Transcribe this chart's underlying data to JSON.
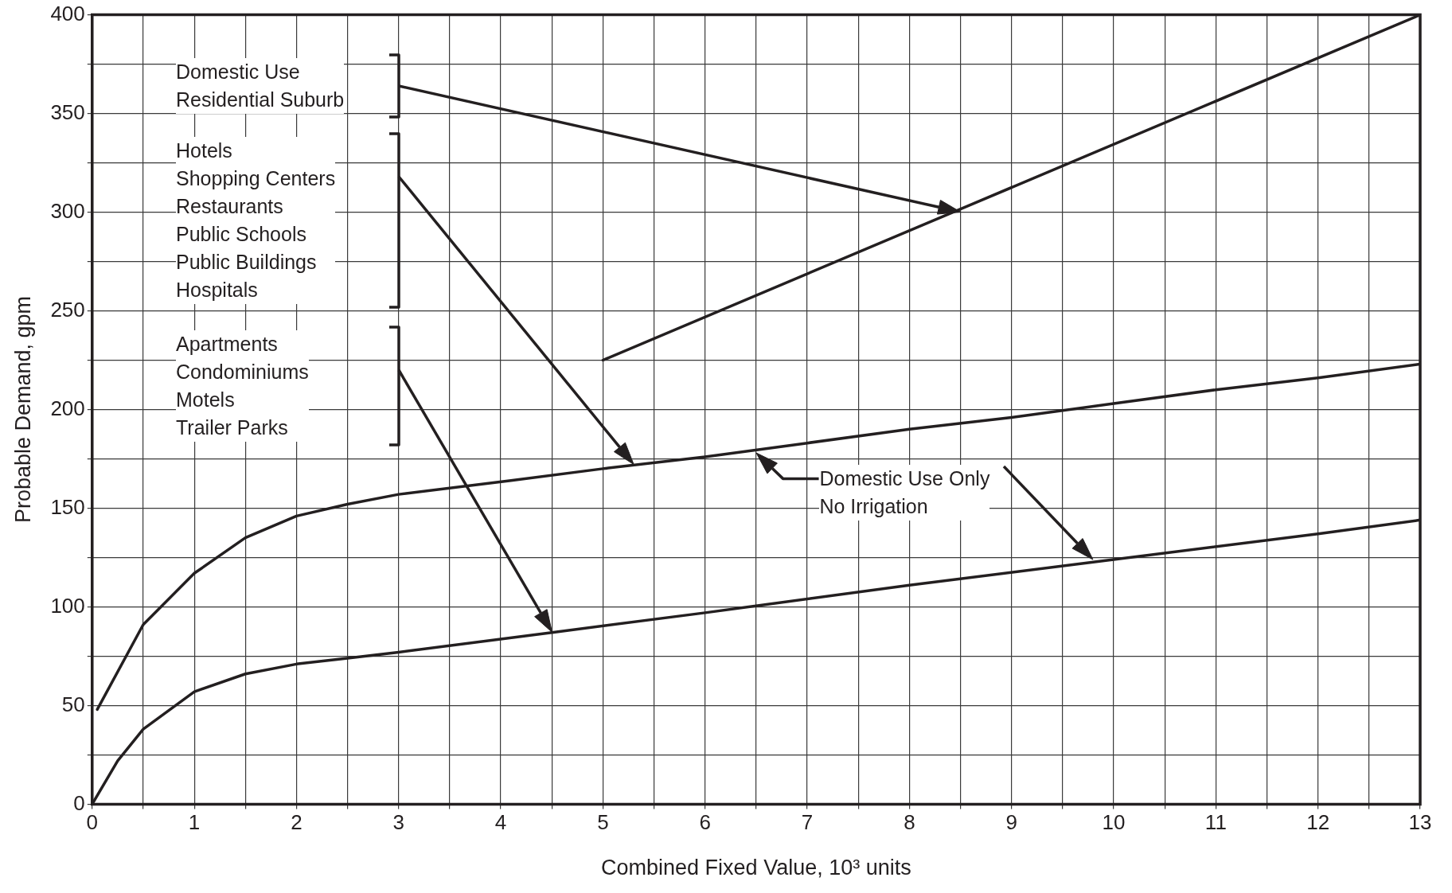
{
  "chart_data": {
    "type": "line",
    "xlabel": "Combined Fixed Value, 10³ units",
    "ylabel": "Probable Demand, gpm",
    "series": [
      {
        "color": "#231f20",
        "x": [
          5,
          13
        ],
        "values": [
          225,
          400
        ]
      },
      {
        "color": "#231f20",
        "x": [
          0.05,
          0.5,
          1,
          1.5,
          2,
          2.5,
          3,
          4.1,
          5,
          6,
          7,
          8,
          9,
          10,
          11,
          12,
          13
        ],
        "values": [
          48,
          91,
          117,
          135,
          146,
          152,
          157,
          164,
          170,
          176,
          183,
          190,
          196,
          203,
          210,
          216,
          223
        ]
      },
      {
        "color": "#231f20",
        "x": [
          0,
          0.25,
          0.5,
          1,
          1.5,
          2,
          2.5,
          3,
          4.5,
          6,
          8,
          10,
          12,
          13
        ],
        "values": [
          0,
          22,
          38,
          57,
          66,
          71,
          74,
          77,
          87,
          97,
          111,
          124,
          137,
          144
        ]
      }
    ],
    "xlim": [
      0,
      13
    ],
    "ylim": [
      0,
      400
    ],
    "xticks": [
      0,
      {
        "value": 0.5,
        "label": null
      },
      1,
      {
        "value": 1.5,
        "label": null
      },
      2,
      {
        "value": 2.5,
        "label": null
      },
      3,
      {
        "value": 3.5,
        "label": null
      },
      4,
      {
        "value": 4.5,
        "label": null
      },
      5,
      {
        "value": 5.5,
        "label": null
      },
      6,
      {
        "value": 6.5,
        "label": null
      },
      7,
      {
        "value": 7.5,
        "label": null
      },
      8,
      {
        "value": 8.5,
        "label": null
      },
      9,
      {
        "value": 9.5,
        "label": null
      },
      10,
      {
        "value": 10.5,
        "label": null
      },
      11,
      {
        "value": 11.5,
        "label": null
      },
      12,
      {
        "value": 12.5,
        "label": null
      },
      13
    ],
    "yticks": [
      0,
      {
        "value": 25,
        "label": null
      },
      50,
      {
        "value": 75,
        "label": null
      },
      100,
      {
        "value": 125,
        "label": null
      },
      150,
      {
        "value": 175,
        "label": null
      },
      200,
      {
        "value": 225,
        "label": null
      },
      250,
      {
        "value": 275,
        "label": null
      },
      300,
      {
        "value": 325,
        "label": null
      },
      350,
      {
        "value": 375,
        "label": null
      },
      400
    ],
    "grid": true,
    "legend": false,
    "marker": "none",
    "line_style": "solid",
    "annotations": [
      "Domestic Use\nResidential Suburb",
      "Hotels\nShopping Centers\nRestaurants\nPublic Schools\nPublic Buildings\nHospitals",
      "Apartments\nCondominiums\nMotels\nTrailer Parks",
      "Domestic Use Only\nNo Irrigation"
    ]
  }
}
